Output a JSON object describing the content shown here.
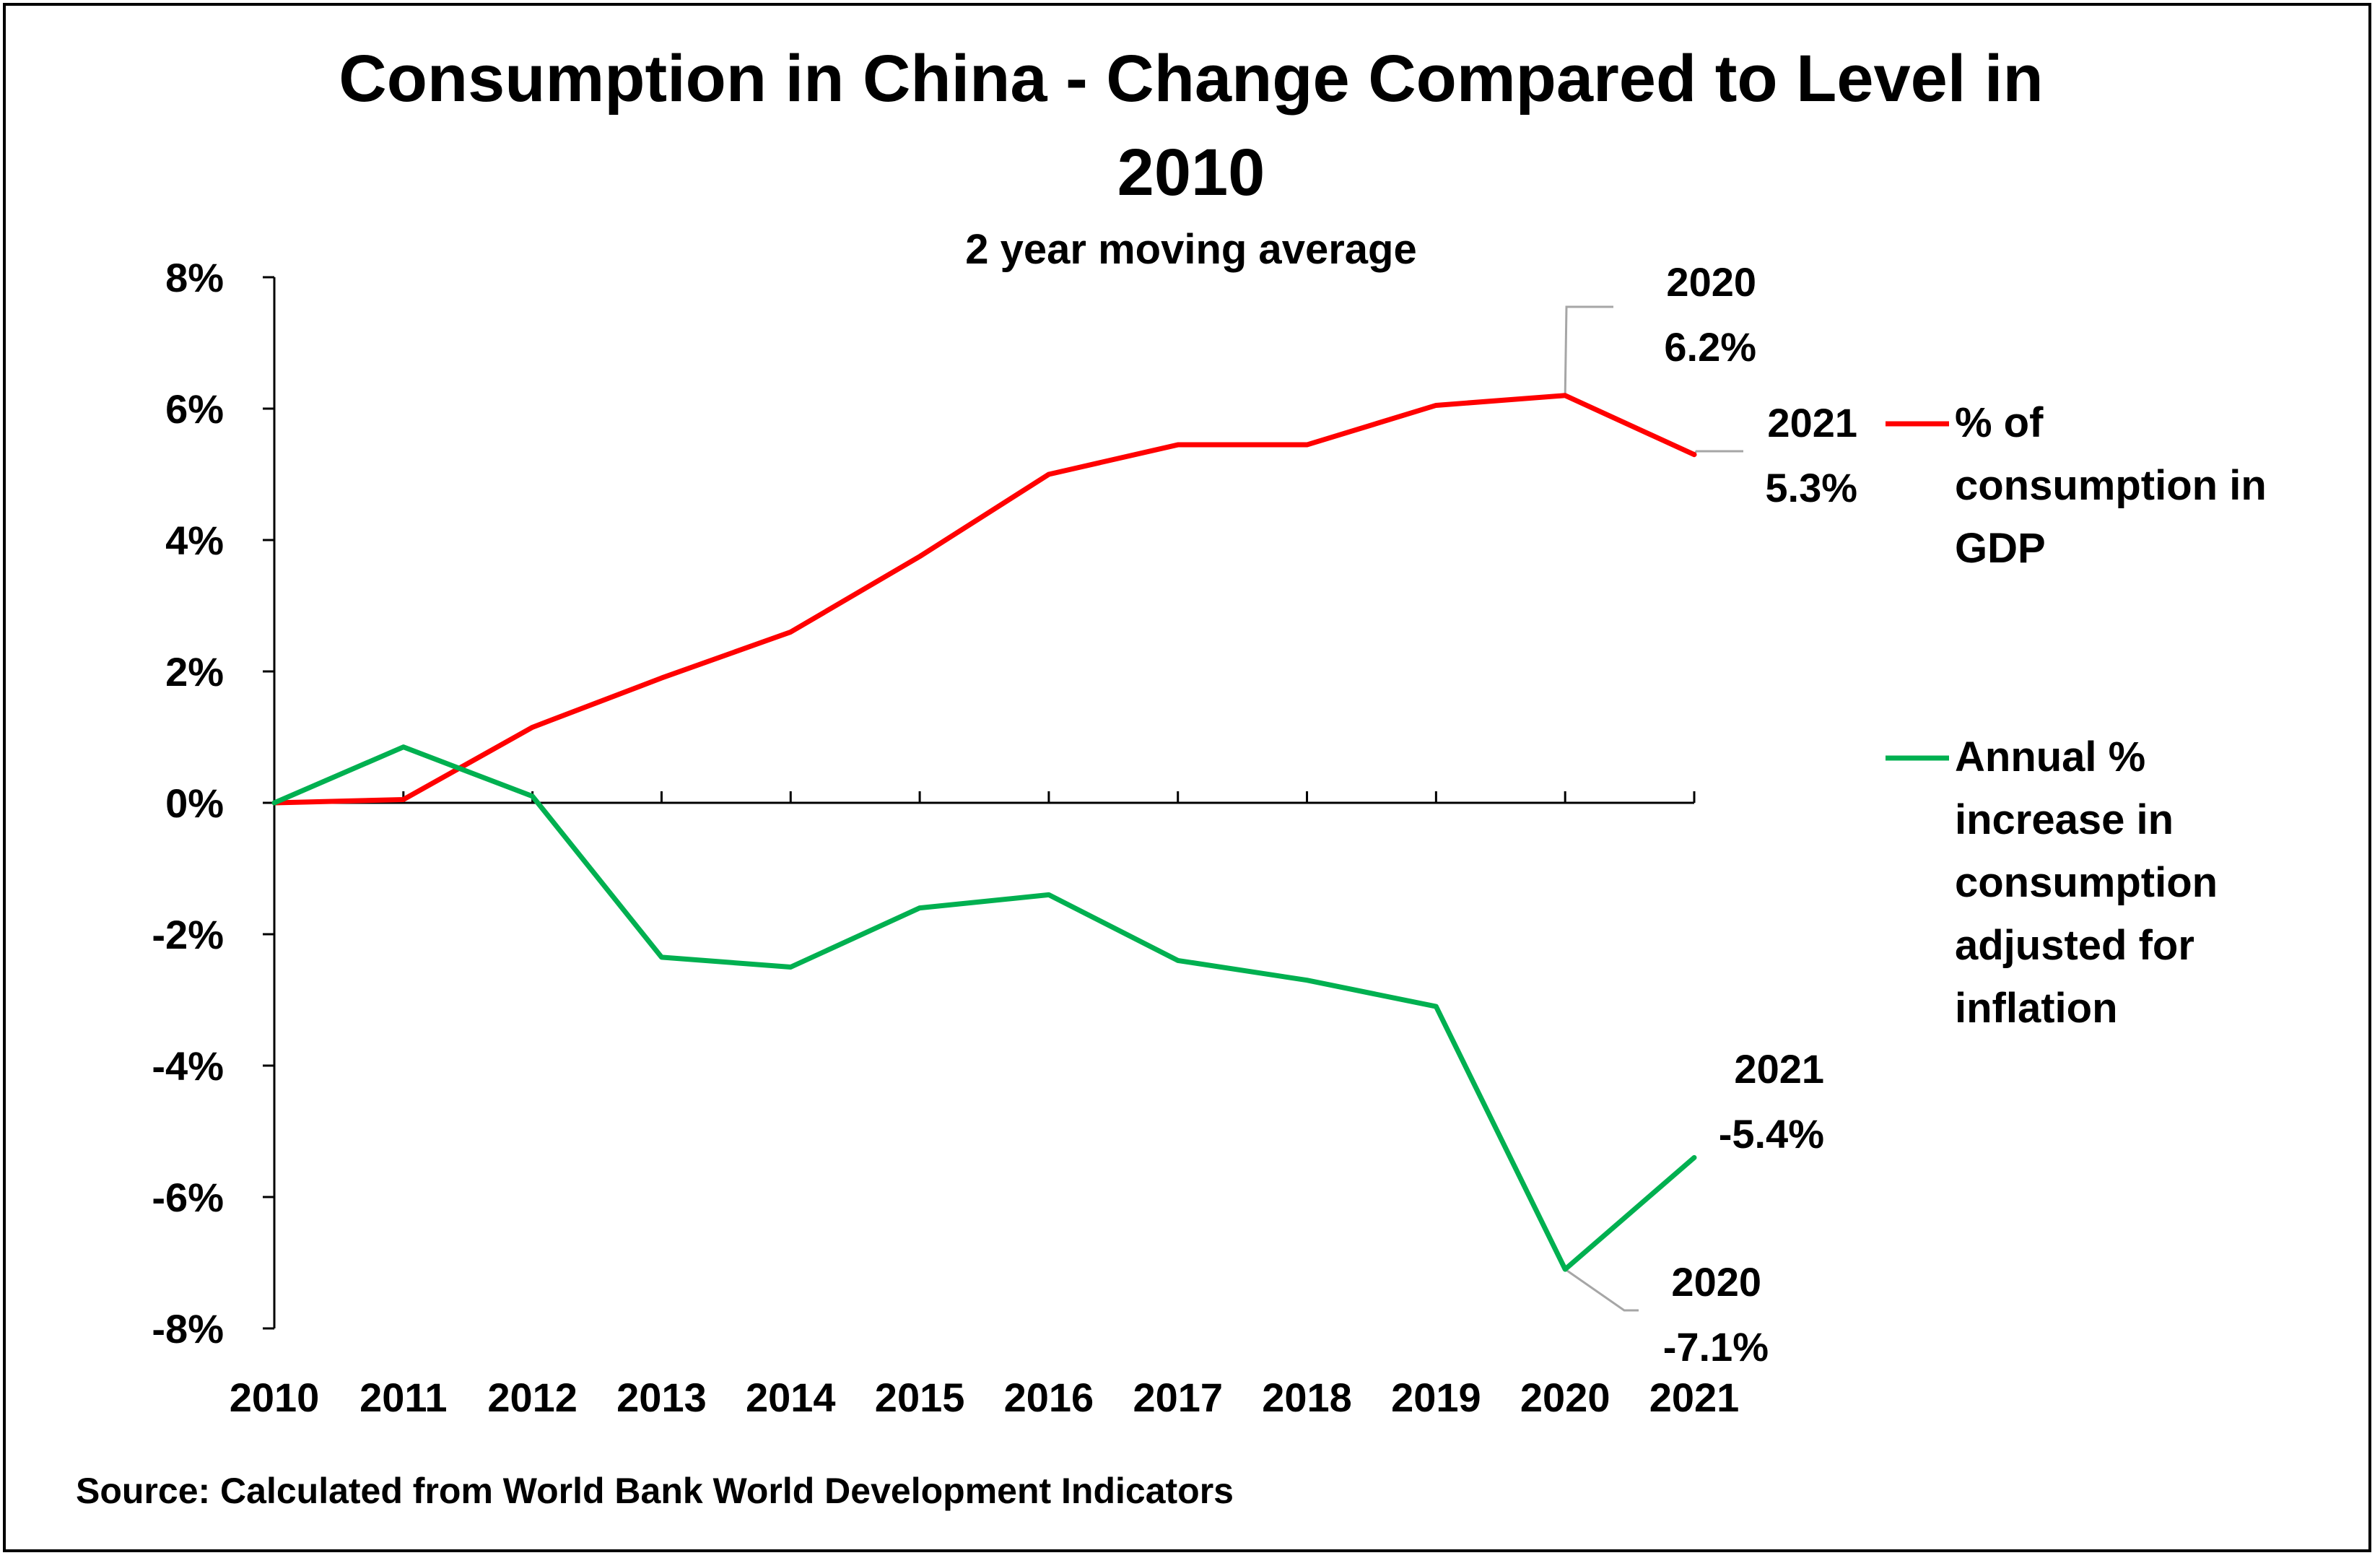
{
  "chart_data": {
    "type": "line",
    "title_line1": "Consumption in China - Change Compared to Level in",
    "title_line2": "2010",
    "subtitle": "2 year moving average",
    "source": "Source:  Calculated from World Bank World Development Indicators",
    "categories": [
      "2010",
      "2011",
      "2012",
      "2013",
      "2014",
      "2015",
      "2016",
      "2017",
      "2018",
      "2019",
      "2020",
      "2021"
    ],
    "ylim": [
      -8,
      8
    ],
    "y_ticks": [
      8,
      6,
      4,
      2,
      0,
      -2,
      -4,
      -6,
      -8
    ],
    "y_tick_labels": [
      "8%",
      "6%",
      "4%",
      "2%",
      "0%",
      "-2%",
      "-4%",
      "-6%",
      "-8%"
    ],
    "grid": false,
    "legend_position": "right",
    "series": [
      {
        "name": "% of consumption in GDP",
        "legend_lines": [
          "% of",
          "consumption in",
          "GDP"
        ],
        "color": "#ff0000",
        "values": [
          0.0,
          0.05,
          1.15,
          1.9,
          2.6,
          3.75,
          5.0,
          5.45,
          5.45,
          6.05,
          6.2,
          5.3
        ]
      },
      {
        "name": "Annual % increase in consumption adjusted for inflation",
        "legend_lines": [
          "Annual %",
          "increase in",
          "consumption",
          "adjusted for",
          "inflation"
        ],
        "color": "#00b050",
        "values": [
          0.0,
          0.85,
          0.1,
          -2.35,
          -2.5,
          -1.6,
          -1.4,
          -2.4,
          -2.7,
          -3.1,
          -7.1,
          -5.4
        ]
      }
    ],
    "annotations": [
      {
        "series": 0,
        "category": "2020",
        "lines": [
          "2020",
          "6.2%"
        ]
      },
      {
        "series": 0,
        "category": "2021",
        "lines": [
          "2021",
          "5.3%"
        ]
      },
      {
        "series": 1,
        "category": "2021",
        "lines": [
          "2021",
          "-5.4%"
        ]
      },
      {
        "series": 1,
        "category": "2020",
        "lines": [
          "2020",
          "-7.1%"
        ]
      }
    ]
  }
}
